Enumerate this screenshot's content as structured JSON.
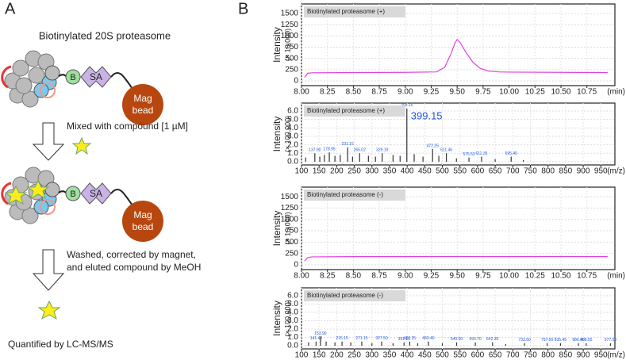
{
  "panel_a": {
    "label": "A",
    "title": "Biotinylated 20S proteasome",
    "biotin": "B",
    "streptavidin": "SA",
    "bead": [
      "Mag",
      "bead"
    ],
    "step1": "Mixed with compound [1 µM]",
    "step2": [
      "Washed, corrected by magnet,",
      "and eluted compound by MeOH"
    ],
    "final": "Quantified by LC-MS/MS"
  },
  "panel_b": {
    "label": "B"
  },
  "chart_data": [
    {
      "type": "line",
      "title": "Biotinylated proteasome (+)",
      "y_label": "Intensity",
      "y_unit": "(× 10,000)",
      "x_unit": "(min)",
      "color": "#e040e0",
      "grid": true,
      "x": [
        8.03,
        8.06,
        8.1,
        8.5,
        9.0,
        9.3,
        9.38,
        9.44,
        9.48,
        9.5,
        9.53,
        9.58,
        9.65,
        9.72,
        9.8,
        9.9,
        10.0,
        10.5,
        10.95
      ],
      "values": [
        80,
        170,
        180,
        185,
        190,
        200,
        300,
        600,
        850,
        920,
        850,
        650,
        420,
        280,
        220,
        200,
        195,
        190,
        185
      ],
      "xlim": [
        8.0,
        11.02
      ],
      "ylim": [
        -106,
        1712
      ],
      "xticks": [
        {
          "value": 8,
          "label": "8.00"
        },
        {
          "value": 8.25,
          "label": "8.25"
        },
        {
          "value": 8.5,
          "label": "8.50"
        },
        {
          "value": 8.75,
          "label": "8.75"
        },
        {
          "value": 9,
          "label": "9.00"
        },
        {
          "value": 9.25,
          "label": "9.25"
        },
        {
          "value": 9.5,
          "label": "9.50"
        },
        {
          "value": 9.75,
          "label": "9.75"
        },
        {
          "value": 10,
          "label": "10.00"
        },
        {
          "value": 10.25,
          "label": "10.25"
        },
        {
          "value": 10.5,
          "label": "10.50"
        },
        {
          "value": 10.75,
          "label": "10.75"
        }
      ],
      "yticks": [
        0,
        250,
        500,
        750,
        1000,
        1250,
        1500
      ]
    },
    {
      "type": "spectrum",
      "title": "Biotinylated proteasome (+)",
      "y_label": "Intensity",
      "y_unit": "(× 100,000)",
      "x_unit": "(m/z)",
      "color": "#333333",
      "label_color": "#2255dd",
      "grid": true,
      "annotation": "399.15",
      "x": [
        112,
        137.9,
        152,
        165,
        178.95,
        195,
        210,
        231.15,
        245,
        265.02,
        290,
        310,
        329.19,
        360,
        380,
        399.15,
        420,
        445,
        472.25,
        490,
        511.46,
        540,
        575.53,
        611.35,
        650,
        695.4,
        730
      ],
      "values": [
        0.5,
        1.0,
        0.6,
        0.8,
        1.1,
        0.7,
        0.8,
        1.7,
        0.6,
        1.0,
        0.7,
        0.6,
        1.0,
        0.8,
        0.7,
        6.3,
        0.9,
        0.6,
        1.5,
        0.7,
        1.0,
        0.4,
        0.5,
        0.6,
        0.3,
        0.6,
        0.2
      ],
      "labels": [
        null,
        "137.90",
        null,
        null,
        "178.95",
        null,
        null,
        "231.15",
        null,
        "265.02",
        null,
        null,
        "329.19",
        null,
        null,
        "399.15",
        null,
        null,
        "472.25",
        null,
        "511.46",
        null,
        "575.53",
        "611.35",
        null,
        "695.40",
        null
      ],
      "xlim": [
        100,
        990
      ],
      "ylim": [
        -0.38,
        6.94
      ],
      "xticks": [
        100,
        150,
        200,
        250,
        300,
        350,
        400,
        450,
        500,
        550,
        600,
        650,
        700,
        750,
        800,
        850,
        900,
        950
      ],
      "yticks": [
        {
          "value": 0,
          "label": "0.0"
        },
        {
          "value": 1,
          "label": "1.0"
        },
        {
          "value": 2,
          "label": "2.0"
        },
        {
          "value": 3,
          "label": "3.0"
        },
        {
          "value": 4,
          "label": "4.0"
        },
        {
          "value": 5,
          "label": "5.0"
        },
        {
          "value": 6,
          "label": "6.0"
        }
      ]
    },
    {
      "type": "line",
      "title": "Biotinylated proteasome (-)",
      "y_label": "Intensity",
      "y_unit": "(× 10,000)",
      "x_unit": "(min)",
      "color": "#e040e0",
      "grid": true,
      "x": [
        8.03,
        8.06,
        8.1,
        8.5,
        9.0,
        9.5,
        10.0,
        10.5,
        10.95
      ],
      "values": [
        80,
        160,
        175,
        180,
        180,
        182,
        180,
        182,
        180
      ],
      "xlim": [
        8.0,
        11.02
      ],
      "ylim": [
        -106,
        1712
      ],
      "xticks": [
        {
          "value": 8,
          "label": "8.00"
        },
        {
          "value": 8.25,
          "label": "8.25"
        },
        {
          "value": 8.5,
          "label": "8.50"
        },
        {
          "value": 8.75,
          "label": "8.75"
        },
        {
          "value": 9,
          "label": "9.00"
        },
        {
          "value": 9.25,
          "label": "9.25"
        },
        {
          "value": 9.5,
          "label": "9.50"
        },
        {
          "value": 9.75,
          "label": "9.75"
        },
        {
          "value": 10,
          "label": "10.00"
        },
        {
          "value": 10.25,
          "label": "10.25"
        },
        {
          "value": 10.5,
          "label": "10.50"
        },
        {
          "value": 10.75,
          "label": "10.75"
        }
      ],
      "yticks": [
        0,
        250,
        500,
        750,
        1000,
        1250,
        1500
      ]
    },
    {
      "type": "spectrum",
      "title": "Biotinylated proteasome (-)",
      "y_label": "Intensity",
      "y_unit": "(× 100,000)",
      "x_unit": "(m/z)",
      "color": "#333333",
      "label_color": "#2255dd",
      "grid": true,
      "x": [
        120,
        141.4,
        153.9,
        170,
        195,
        215.15,
        240,
        271.15,
        300,
        327.5,
        360,
        391.15,
        407.35,
        430,
        460.4,
        500,
        540.5,
        593.7,
        642.35,
        680,
        733.5,
        797.55,
        835.45,
        886.45,
        908.55,
        977.5
      ],
      "values": [
        0.4,
        0.5,
        1.1,
        0.5,
        0.4,
        0.5,
        0.4,
        0.5,
        0.3,
        0.5,
        0.3,
        0.4,
        0.5,
        0.3,
        0.5,
        0.3,
        0.4,
        0.4,
        0.4,
        0.2,
        0.3,
        0.3,
        0.3,
        0.3,
        0.3,
        0.3
      ],
      "labels": [
        null,
        "141.40",
        "153.90",
        null,
        null,
        "215.15",
        null,
        "271.15",
        null,
        "327.50",
        null,
        "391.15",
        "407.35",
        null,
        "460.40",
        null,
        "540.50",
        "593.70",
        "642.35",
        null,
        "733.50",
        "797.55",
        "835.45",
        "886.45",
        "908.55",
        "977.50"
      ],
      "xlim": [
        100,
        990
      ],
      "ylim": [
        -0.38,
        6.94
      ],
      "xticks": [
        100,
        150,
        200,
        250,
        300,
        350,
        400,
        450,
        500,
        550,
        600,
        650,
        700,
        750,
        800,
        850,
        900,
        950
      ],
      "yticks": [
        {
          "value": 0,
          "label": "0.0"
        },
        {
          "value": 1,
          "label": "1.0"
        },
        {
          "value": 2,
          "label": "2.0"
        },
        {
          "value": 3,
          "label": "3.0"
        },
        {
          "value": 4,
          "label": "4.0"
        },
        {
          "value": 5,
          "label": "5.0"
        },
        {
          "value": 6,
          "label": "6.0"
        }
      ]
    }
  ]
}
